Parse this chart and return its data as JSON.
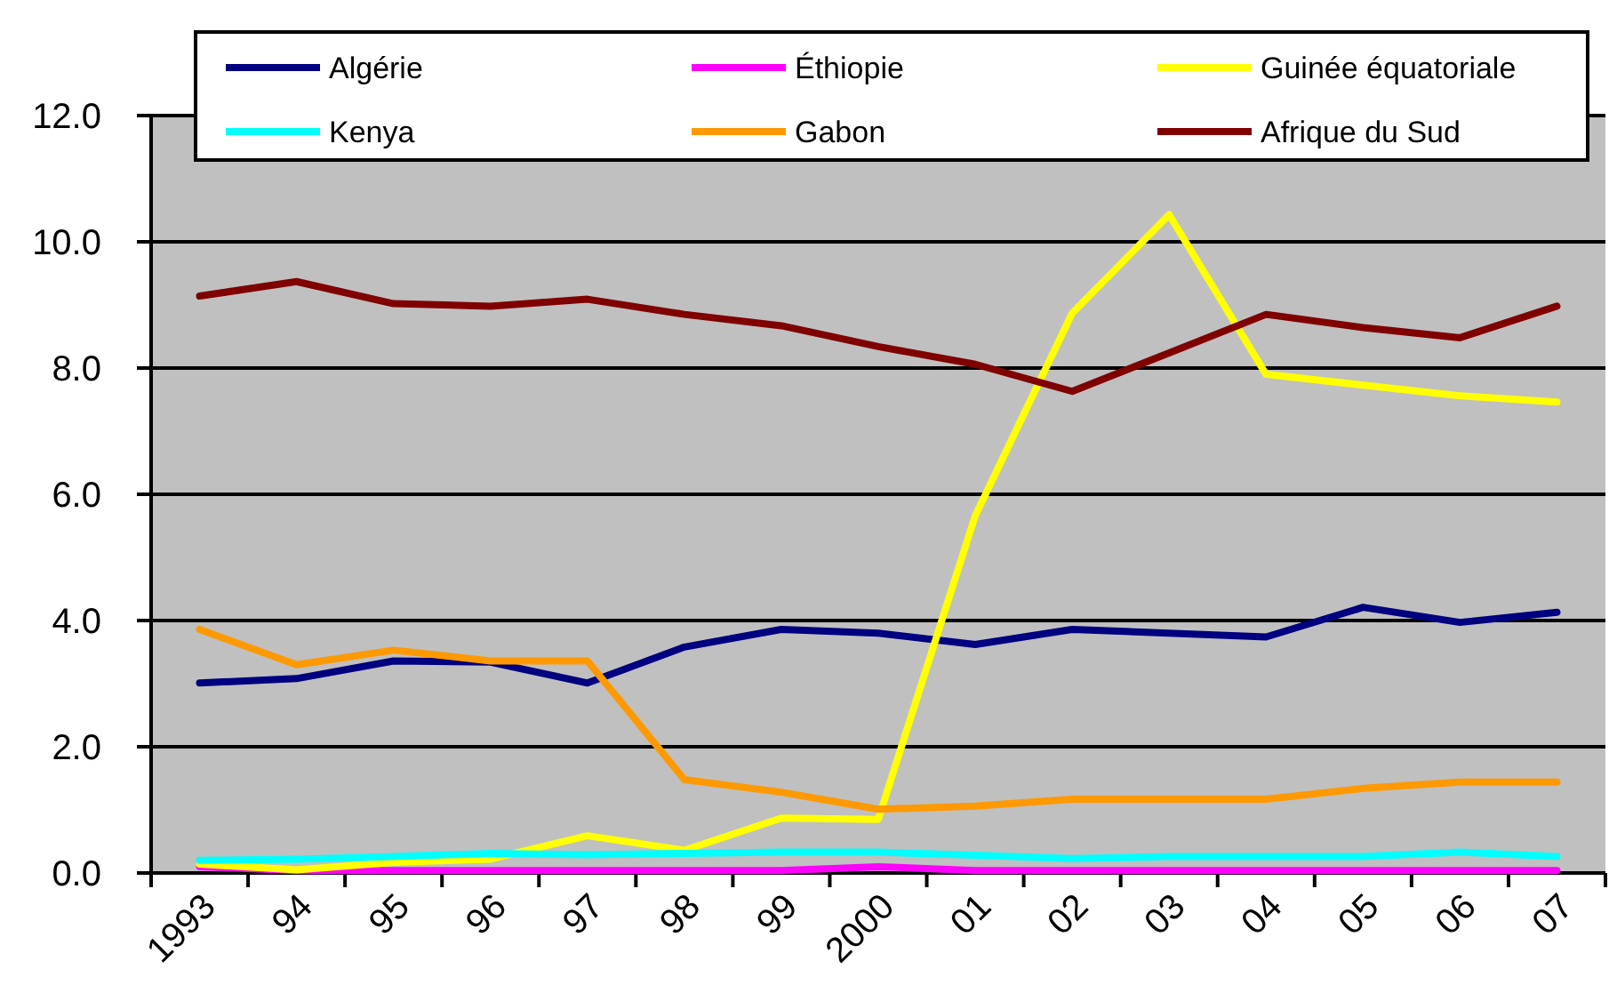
{
  "chart_data": {
    "type": "line",
    "categories": [
      "1993",
      "94",
      "95",
      "96",
      "97",
      "98",
      "99",
      "2000",
      "01",
      "02",
      "03",
      "04",
      "05",
      "06",
      "07"
    ],
    "series": [
      {
        "name": "Algérie",
        "color": "#000080",
        "values": [
          3.01,
          3.08,
          3.36,
          3.34,
          3.01,
          3.58,
          3.86,
          3.8,
          3.62,
          3.86,
          3.8,
          3.74,
          4.21,
          3.97,
          4.13
        ]
      },
      {
        "name": "Éthiopie",
        "color": "#ff00ff",
        "values": [
          0.1,
          0.04,
          0.04,
          0.04,
          0.04,
          0.04,
          0.04,
          0.1,
          0.04,
          0.04,
          0.04,
          0.04,
          0.04,
          0.04,
          0.04
        ]
      },
      {
        "name": "Guinée équatoriale",
        "color": "#ffff00",
        "values": [
          0.14,
          0.05,
          0.17,
          0.22,
          0.59,
          0.36,
          0.87,
          0.85,
          5.66,
          8.87,
          10.43,
          7.9,
          7.73,
          7.56,
          7.46
        ]
      },
      {
        "name": "Kenya",
        "color": "#00ffff",
        "values": [
          0.2,
          0.22,
          0.26,
          0.31,
          0.29,
          0.31,
          0.33,
          0.33,
          0.28,
          0.23,
          0.26,
          0.26,
          0.26,
          0.33,
          0.26
        ]
      },
      {
        "name": "Gabon",
        "color": "#ff9900",
        "values": [
          3.86,
          3.3,
          3.53,
          3.36,
          3.36,
          1.48,
          1.28,
          1.01,
          1.06,
          1.17,
          1.17,
          1.17,
          1.34,
          1.44,
          1.44
        ]
      },
      {
        "name": "Afrique du Sud",
        "color": "#800000",
        "values": [
          9.14,
          9.37,
          9.02,
          8.98,
          9.09,
          8.85,
          8.67,
          8.34,
          8.06,
          7.63,
          8.24,
          8.85,
          8.64,
          8.48,
          8.98
        ]
      }
    ],
    "ylim": [
      0,
      12
    ],
    "yticks": [
      {
        "value": 0,
        "label": "0.0"
      },
      {
        "value": 2,
        "label": "2.0"
      },
      {
        "value": 4,
        "label": "4.0"
      },
      {
        "value": 6,
        "label": "6.0"
      },
      {
        "value": 8,
        "label": "8.0"
      },
      {
        "value": 10,
        "label": "10.0"
      },
      {
        "value": 12,
        "label": "12.0"
      }
    ],
    "grid": "y",
    "legend": "top"
  }
}
